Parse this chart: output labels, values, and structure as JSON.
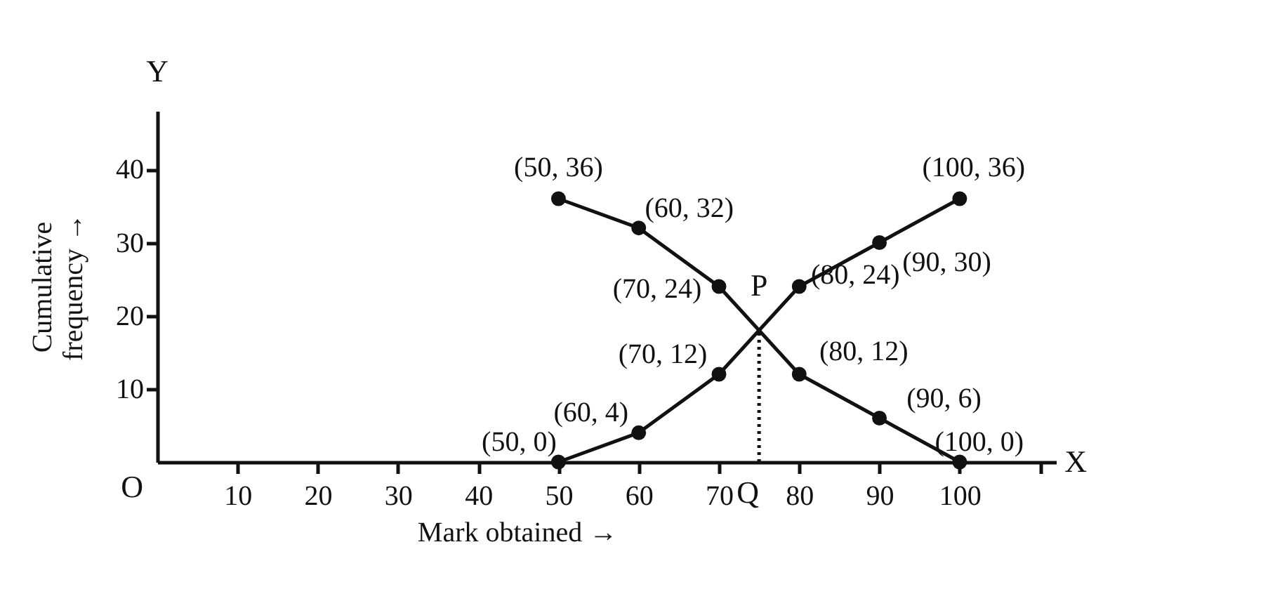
{
  "chart_data": {
    "type": "line",
    "xlabel": "Mark obtained →",
    "ylabel": "Cumulative frequency →",
    "x": [
      50,
      60,
      70,
      80,
      90,
      100
    ],
    "series": [
      {
        "color": "#111111",
        "values": [
          0,
          4,
          12,
          24,
          30,
          36
        ],
        "value_labels": [
          "(50, 0)",
          "(60, 4)",
          "(70, 12)",
          "(80, 24)",
          "(90, 30)",
          "(100, 36)"
        ]
      },
      {
        "color": "#111111",
        "values": [
          36,
          32,
          24,
          12,
          6,
          0
        ],
        "value_labels": [
          "(50, 36)",
          "(60, 32)",
          "(70, 24)",
          "(80, 12)",
          "(90, 6)",
          "(100, 0)"
        ]
      }
    ],
    "xlim": [
      0,
      112
    ],
    "ylim": [
      0,
      48
    ],
    "xticks": [
      10,
      20,
      30,
      40,
      50,
      60,
      70,
      80,
      90,
      100,
      {
        "value": 110,
        "label": null
      }
    ],
    "yticks": [
      10,
      20,
      30,
      40
    ],
    "ref_lines": [
      {
        "axis": "x",
        "value": 75,
        "line_style": "dotted",
        "color": "#111111"
      }
    ],
    "annotations": [
      {
        "text": "P",
        "x": 75,
        "y": 18
      },
      {
        "text": "Q",
        "x": 75,
        "y": 0
      },
      "O",
      "X",
      "Y"
    ],
    "marker": "circle",
    "line_style": "solid",
    "grid": false
  }
}
